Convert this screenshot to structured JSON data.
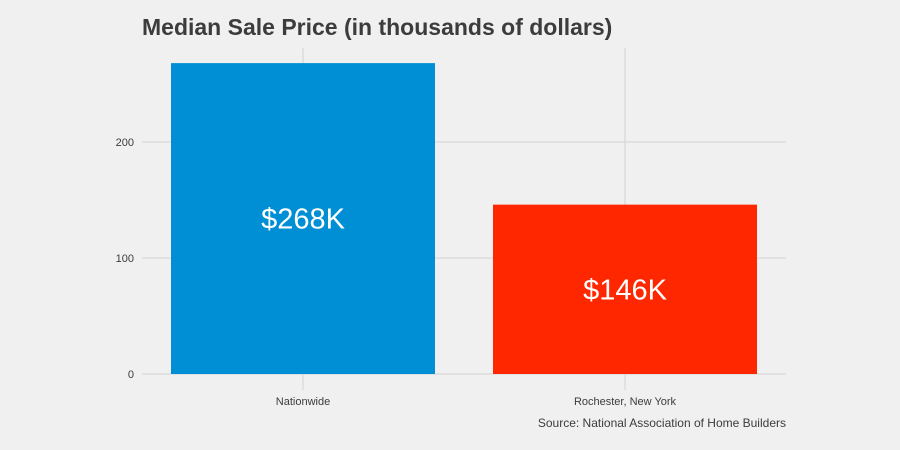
{
  "chart_data": {
    "type": "bar",
    "title": "Median Sale Price (in thousands of dollars)",
    "caption": "Source: National Association of Home Builders",
    "categories": [
      "Nationwide",
      "Rochester, New York"
    ],
    "values": [
      268,
      146
    ],
    "data_labels": [
      "$268K",
      "$146K"
    ],
    "bar_colors": [
      "#008fd5",
      "#ff2700"
    ],
    "y_ticks": [
      0,
      100,
      200
    ],
    "y_tick_labels": [
      "0",
      "100",
      "200"
    ],
    "ylim": [
      0,
      290
    ],
    "grid": true,
    "xlabel": "",
    "ylabel": ""
  }
}
